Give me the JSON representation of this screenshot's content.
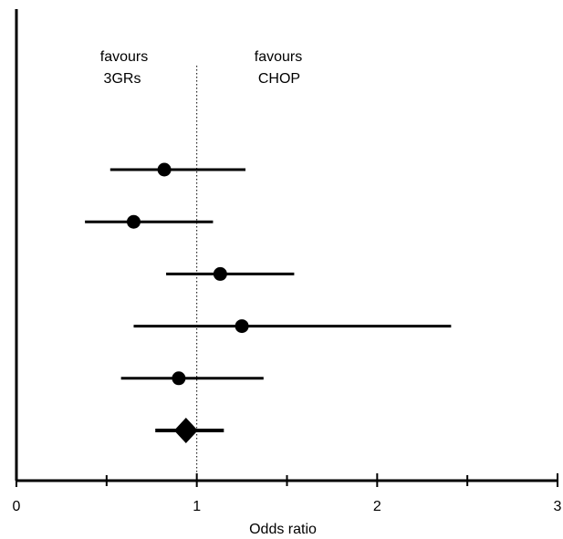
{
  "chart_data": {
    "type": "forest",
    "xlabel": "Odds ratio",
    "xlim": [
      0,
      3
    ],
    "ticks": [
      "0",
      "1",
      "2",
      "3"
    ],
    "reference_line": 1,
    "annotations": {
      "left": [
        "favours",
        "3GRs"
      ],
      "right": [
        "favours",
        "CHOP"
      ]
    },
    "studies": [
      {
        "or": 0.82,
        "ci": [
          0.52,
          1.27
        ]
      },
      {
        "or": 0.65,
        "ci": [
          0.38,
          1.09
        ]
      },
      {
        "or": 1.13,
        "ci": [
          0.83,
          1.54
        ]
      },
      {
        "or": 1.25,
        "ci": [
          0.65,
          2.41
        ]
      },
      {
        "or": 0.9,
        "ci": [
          0.58,
          1.37
        ]
      }
    ],
    "pooled": {
      "or": 0.94,
      "ci": [
        0.77,
        1.15
      ]
    }
  }
}
